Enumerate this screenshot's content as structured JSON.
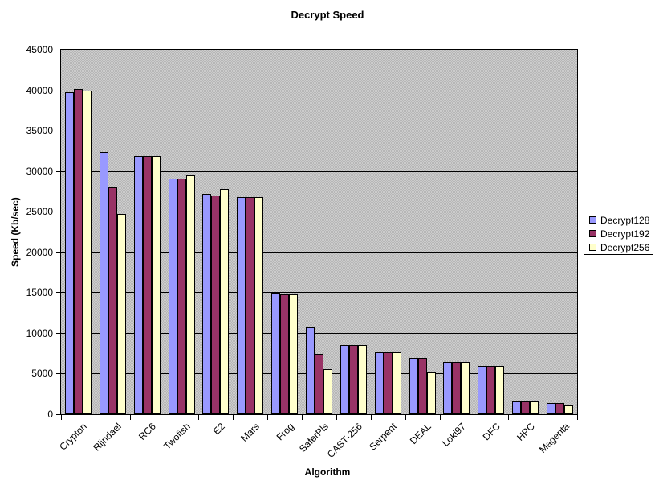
{
  "chart": {
    "title": "Decrypt Speed",
    "xlabel": "Algorithm",
    "ylabel": "Speed (Kb/sec)"
  },
  "chart_data": {
    "type": "bar",
    "title": "Decrypt Speed",
    "xlabel": "Algorithm",
    "ylabel": "Speed (Kb/sec)",
    "ylim": [
      0,
      45000
    ],
    "ytick_step": 5000,
    "grid": true,
    "legend_position": "right",
    "plot_bg": "#c0c0c0",
    "gridline_color": "#000000",
    "categories": [
      "Crypton",
      "Rijndael",
      "RC6",
      "Twofish",
      "E2",
      "Mars",
      "Frog",
      "SaferPls",
      "CAST-256",
      "Serpent",
      "DEAL",
      "Loki97",
      "DFC",
      "HPC",
      "Magenta"
    ],
    "series": [
      {
        "name": "Decrypt128",
        "color": "#9999ff",
        "values": [
          39800,
          32300,
          31800,
          29100,
          27200,
          26800,
          14900,
          10800,
          8500,
          7700,
          6900,
          6400,
          5900,
          1600,
          1400
        ]
      },
      {
        "name": "Decrypt192",
        "color": "#993366",
        "values": [
          40200,
          28100,
          31800,
          29100,
          27000,
          26800,
          14800,
          7400,
          8500,
          7700,
          6900,
          6400,
          5900,
          1600,
          1400
        ]
      },
      {
        "name": "Decrypt256",
        "color": "#ffffcc",
        "values": [
          40000,
          24700,
          31800,
          29500,
          27800,
          26800,
          14800,
          5500,
          8500,
          7700,
          5200,
          6400,
          5900,
          1600,
          1100
        ]
      }
    ]
  }
}
